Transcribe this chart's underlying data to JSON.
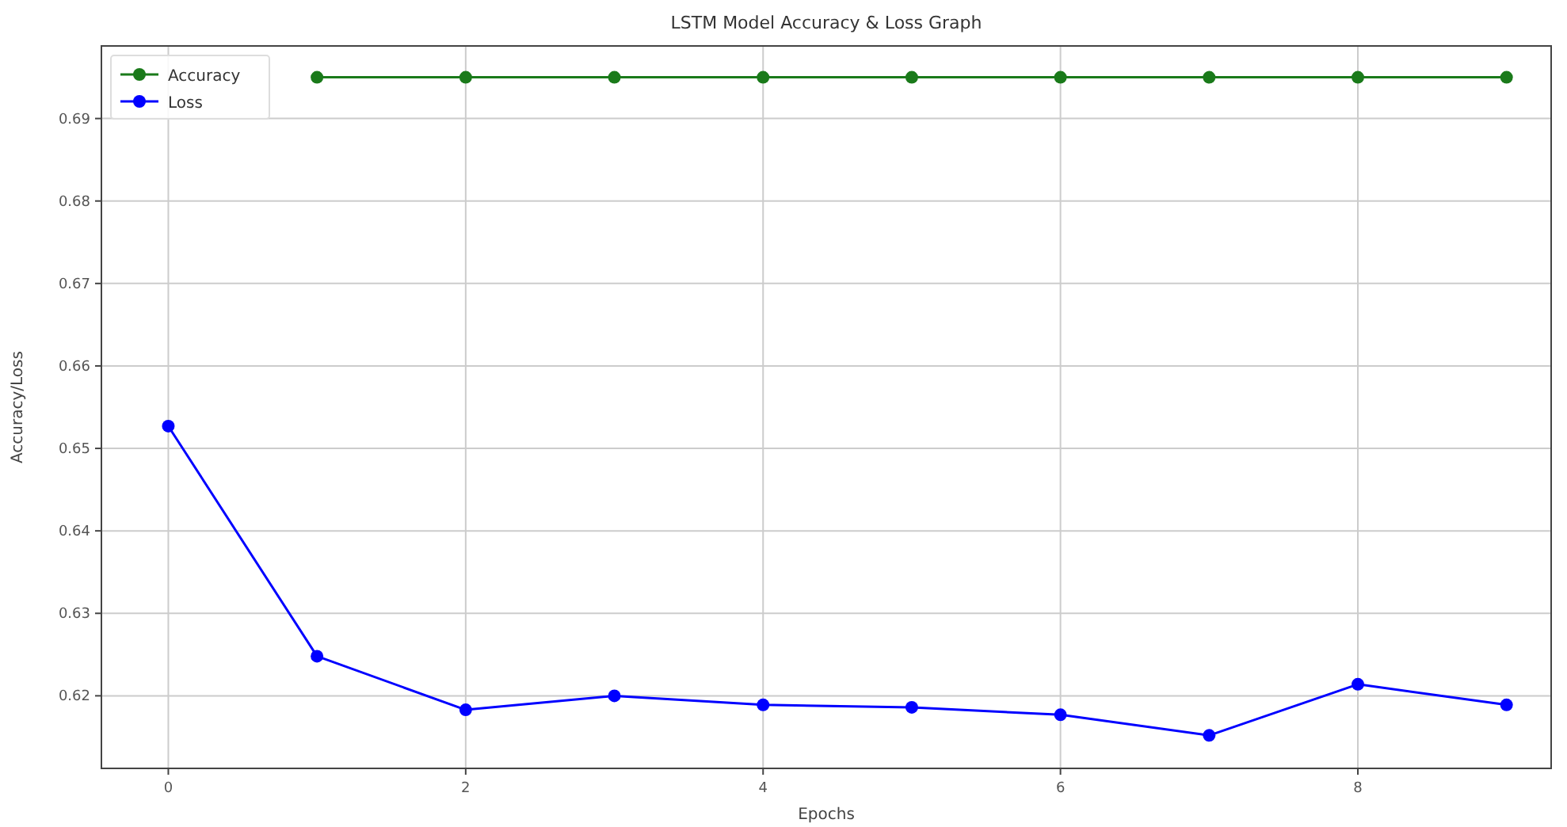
{
  "chart_data": {
    "type": "line",
    "title": "LSTM Model Accuracy & Loss Graph",
    "xlabel": "Epochs",
    "ylabel": "Accuracy/Loss",
    "x": [
      0,
      1,
      2,
      3,
      4,
      5,
      6,
      7,
      8,
      9
    ],
    "series": [
      {
        "name": "Accuracy",
        "color": "#1a7a1a",
        "values": [
          null,
          0.695,
          0.695,
          0.695,
          0.695,
          0.695,
          0.695,
          0.695,
          0.695,
          0.695
        ]
      },
      {
        "name": "Loss",
        "color": "#0000ff",
        "values": [
          0.6527,
          0.6248,
          0.6183,
          0.62,
          0.6189,
          0.6186,
          0.6177,
          0.6152,
          0.6214,
          0.6189
        ]
      }
    ],
    "xlim": [
      -0.45,
      9.3
    ],
    "ylim": [
      0.6112,
      0.6988
    ],
    "xticks": [
      0,
      2,
      4,
      6,
      8
    ],
    "yticks": [
      0.62,
      0.63,
      0.64,
      0.65,
      0.66,
      0.67,
      0.68,
      0.69
    ],
    "grid": true,
    "legend": "top left",
    "marker": "circle",
    "line_style": "solid"
  }
}
